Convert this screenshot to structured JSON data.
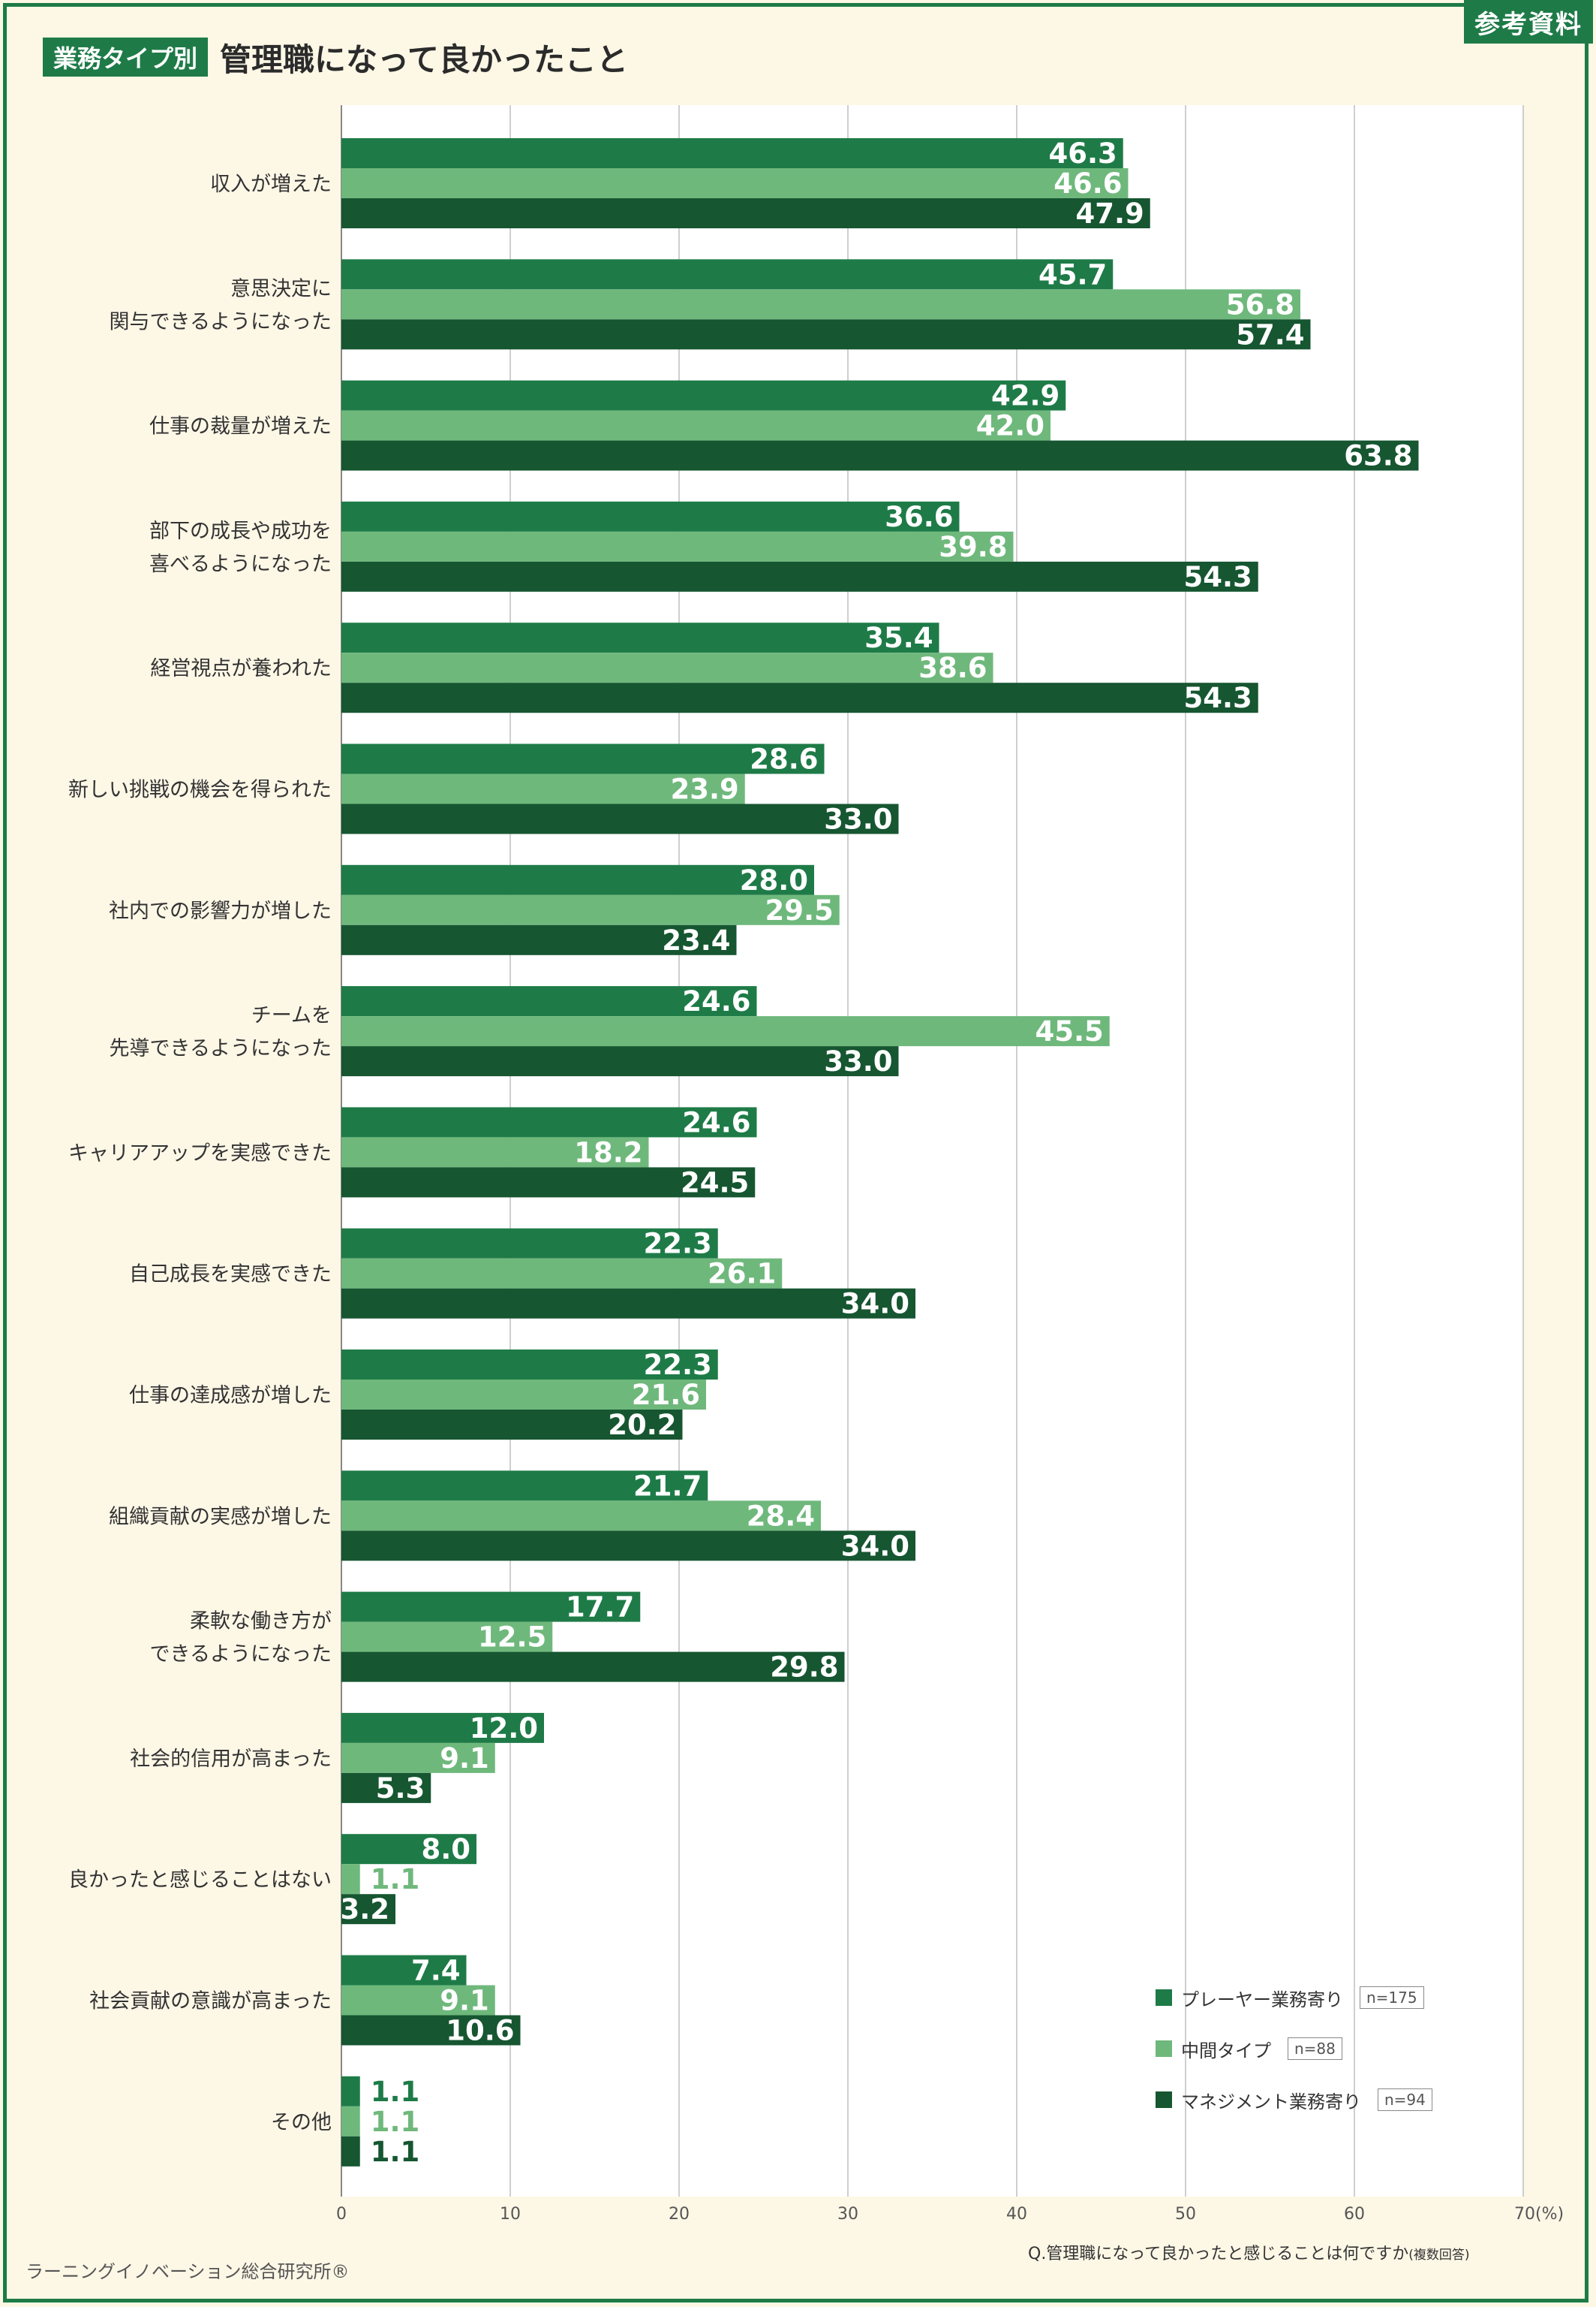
{
  "badge": "参考資料",
  "header": {
    "tag": "業務タイプ別",
    "title": "管理職になって良かったこと"
  },
  "colors": {
    "frame": "#1e7b47",
    "player": "#1e7b47",
    "middle": "#6fb87c",
    "management": "#165631",
    "background": "#fdf7e6",
    "grid": "#bfbfbf"
  },
  "chart_data": {
    "type": "bar",
    "orientation": "horizontal",
    "title": "管理職になって良かったこと",
    "xlim": [
      0,
      70
    ],
    "x_ticks": [
      "0",
      "10",
      "20",
      "30",
      "40",
      "50",
      "60",
      "70(%)"
    ],
    "grid": true,
    "legend_position": "bottom-right",
    "categories": [
      [
        "収入が増えた"
      ],
      [
        "意思決定に",
        "関与できるようになった"
      ],
      [
        "仕事の裁量が増えた"
      ],
      [
        "部下の成長や成功を",
        "喜べるようになった"
      ],
      [
        "経営視点が養われた"
      ],
      [
        "新しい挑戦の機会を得られた"
      ],
      [
        "社内での影響力が増した"
      ],
      [
        "チームを",
        "先導できるようになった"
      ],
      [
        "キャリアアップを実感できた"
      ],
      [
        "自己成長を実感できた"
      ],
      [
        "仕事の達成感が増した"
      ],
      [
        "組織貢献の実感が増した"
      ],
      [
        "柔軟な働き方が",
        "できるようになった"
      ],
      [
        "社会的信用が高まった"
      ],
      [
        "良かったと感じることはない"
      ],
      [
        "社会貢献の意識が高まった"
      ],
      [
        "その他"
      ]
    ],
    "series": [
      {
        "name": "プレーヤー業務寄り",
        "n": "n=175",
        "color": "#1e7b47",
        "values": [
          46.3,
          45.7,
          42.9,
          36.6,
          35.4,
          28.6,
          28.0,
          24.6,
          24.6,
          22.3,
          22.3,
          21.7,
          17.7,
          12.0,
          8.0,
          7.4,
          1.1
        ]
      },
      {
        "name": "中間タイプ",
        "n": "n=88",
        "color": "#6fb87c",
        "values": [
          46.6,
          56.8,
          42.0,
          39.8,
          38.6,
          23.9,
          29.5,
          45.5,
          18.2,
          26.1,
          21.6,
          28.4,
          12.5,
          9.1,
          1.1,
          9.1,
          1.1
        ]
      },
      {
        "name": "マネジメント業務寄り",
        "n": "n=94",
        "color": "#165631",
        "values": [
          47.9,
          57.4,
          63.8,
          54.3,
          54.3,
          33.0,
          23.4,
          33.0,
          24.5,
          34.0,
          20.2,
          34.0,
          29.8,
          5.3,
          3.2,
          10.6,
          1.1
        ]
      }
    ]
  },
  "footer": {
    "source": "ラーニングイノベーション総合研究所®",
    "question": "Q.管理職になって良かったと感じることは何ですか",
    "question_note": "(複数回答)"
  }
}
